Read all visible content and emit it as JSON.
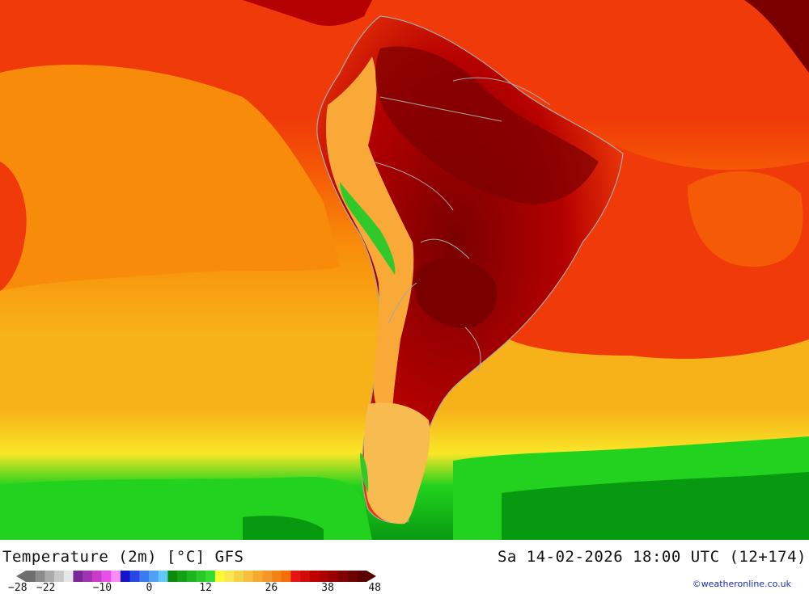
{
  "title": "Temperature (2m) [°C] GFS",
  "valid_time": "Sa 14-02-2026 18:00 UTC (12+174)",
  "credit": "©weatheronline.co.uk",
  "map_colors": {
    "equatorial_ocean": "#f03a0a",
    "warm_ocean": "#f55a06",
    "mid_ocean": "#f88c0a",
    "cool_ocean": "#f7b219",
    "yellow_band": "#fae628",
    "south_green": "#23d21e",
    "deep_green": "#079a10",
    "hot_land": "#b40000",
    "very_hot_land": "#7a0000",
    "andes_cool": "#f9a937",
    "patagonia": "#f7bb4f",
    "andes_green": "#31c92a",
    "border_line": "#a8a8a8"
  },
  "legend": {
    "colors": [
      "#6e6e6e",
      "#8c8c8c",
      "#aaaaaa",
      "#c8c8c8",
      "#e6e6e6",
      "#782896",
      "#a032b4",
      "#c83cc8",
      "#e650e6",
      "#fa8cfa",
      "#1414c8",
      "#2846e6",
      "#3c78f0",
      "#50a0f5",
      "#64c8fa",
      "#0a8c0a",
      "#14a014",
      "#1eb41e",
      "#28c828",
      "#32dc32",
      "#fafa32",
      "#fae650",
      "#f5d246",
      "#f5be3c",
      "#f5aa32",
      "#f59628",
      "#f58214",
      "#f56e0a",
      "#e61414",
      "#d20a0a",
      "#be0000",
      "#aa0000",
      "#960000",
      "#820000",
      "#6e0000",
      "#5a0000"
    ],
    "ticks": [
      {
        "label": "−28",
        "value": -28
      },
      {
        "label": "−22",
        "value": -22
      },
      {
        "label": "−10",
        "value": -10
      },
      {
        "label": "0",
        "value": 0
      },
      {
        "label": "12",
        "value": 12
      },
      {
        "label": "26",
        "value": 26
      },
      {
        "label": "38",
        "value": 38
      },
      {
        "label": "48",
        "value": 48
      }
    ]
  }
}
